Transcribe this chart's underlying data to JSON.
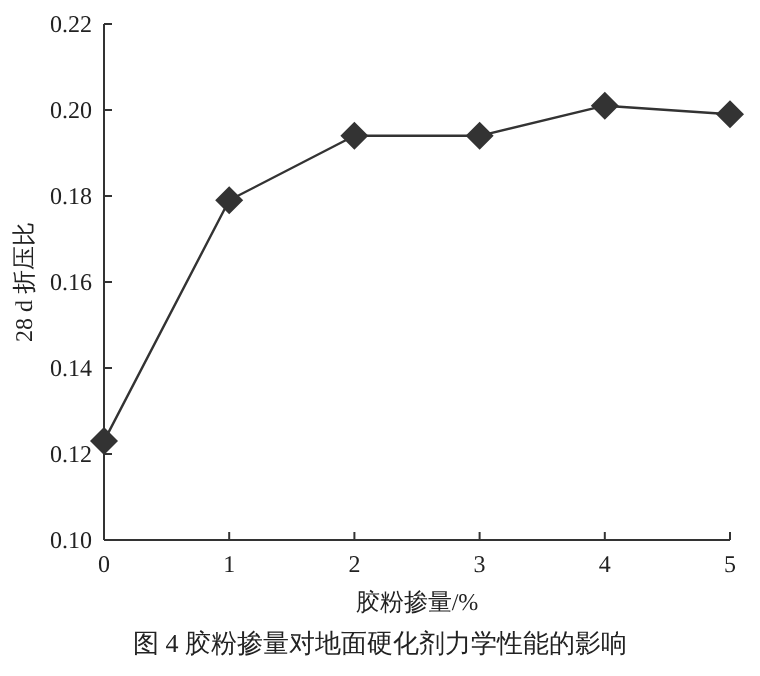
{
  "chart_data": {
    "type": "line",
    "xlabel": "胶粉掺量/%",
    "ylabel": "28 d 折压比",
    "annotations": [
      "图 4   胶粉掺量对地面硬化剂力学性能的影响"
    ],
    "x": [
      0,
      1,
      2,
      3,
      4,
      5
    ],
    "series": [
      {
        "color": "#333333",
        "values": [
          0.123,
          0.179,
          0.194,
          0.194,
          0.201,
          0.199
        ]
      }
    ],
    "xlim": [
      0,
      5
    ],
    "xticks": [
      0,
      1,
      2,
      3,
      4,
      5
    ],
    "ylim": [
      0.1,
      0.22
    ],
    "yticks": [
      {
        "value": 0.1,
        "label": "0.10"
      },
      0.12,
      0.14,
      0.16,
      0.18,
      {
        "value": 0.2,
        "label": "0.20"
      },
      0.22
    ],
    "marker": "diamond",
    "line_style": "solid",
    "grid": false
  }
}
